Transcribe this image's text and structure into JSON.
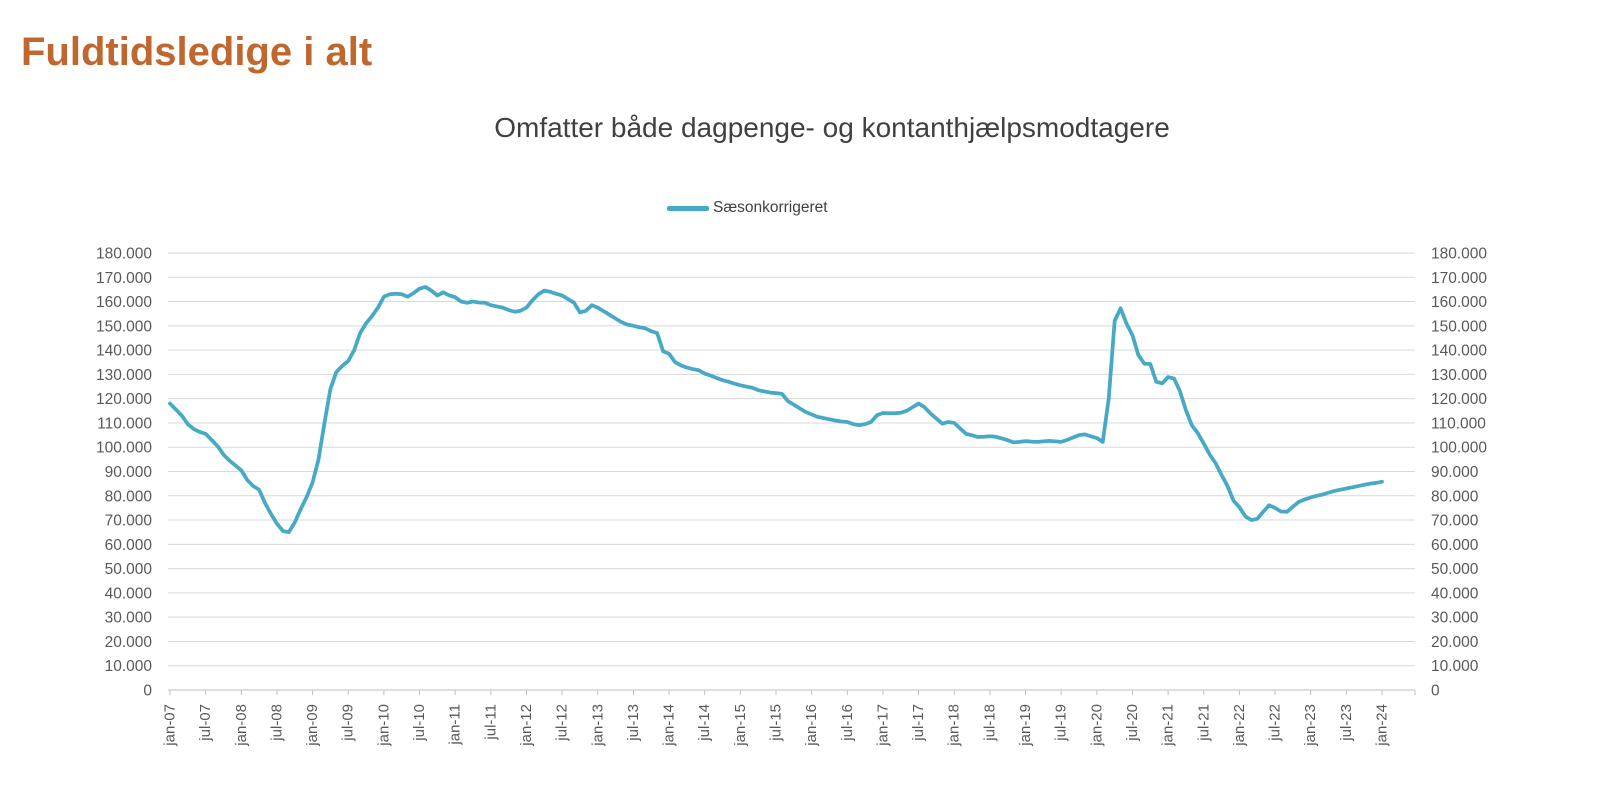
{
  "header": {
    "title": "Fuldtidsledige i alt",
    "title_color": "#c0662f"
  },
  "chart": {
    "title": "Omfatter både dagpenge- og kontanthjælpsmodtagere",
    "legend_label": "Sæsonkorrigeret",
    "line_color": "#47a9c5",
    "subtitle_color": "#404040",
    "axis_label_color": "#595959",
    "gridline_color": "#d9d9d9",
    "axis_line_color": "#bfbfbf"
  },
  "chart_data": {
    "type": "line",
    "title": "Omfatter både dagpenge- og kontanthjælpsmodtagere",
    "series": [
      {
        "name": "Sæsonkorrigeret",
        "color": "#47a9c5"
      }
    ],
    "unit": "fuldtidsledige personer (values stored in thousands)",
    "x_frequency": "monthly",
    "x_start": "jan-07",
    "x_end": "jan-24",
    "x_tick_labels": [
      "jan-07",
      "jul-07",
      "jan-08",
      "jul-08",
      "jan-09",
      "jul-09",
      "jan-10",
      "jul-10",
      "jan-11",
      "jul-11",
      "jan-12",
      "jul-12",
      "jan-13",
      "jul-13",
      "jan-14",
      "jul-14",
      "jan-15",
      "jul-15",
      "jan-16",
      "jul-16",
      "jan-17",
      "jul-17",
      "jan-18",
      "jul-18",
      "jan-19",
      "jul-19",
      "jan-20",
      "jul-20",
      "jan-21",
      "jul-21",
      "jan-22",
      "jul-22",
      "jan-23",
      "jul-23",
      "jan-24"
    ],
    "y_min": 0,
    "y_max": 180000,
    "y_tick_step": 10000,
    "y_axis_sides": [
      "left",
      "right"
    ],
    "y_label_format": "danish thousands separator (180.000)",
    "grid": "horizontal",
    "legend_position": "top-center",
    "values_thousands": [
      118,
      115.5,
      113,
      109.5,
      107.5,
      106.3,
      105.5,
      103,
      100.5,
      97,
      94.5,
      92.5,
      90.5,
      86.5,
      84,
      82.5,
      77,
      72.5,
      68.5,
      65.5,
      65,
      69,
      74.5,
      79.5,
      85.5,
      95,
      110,
      124,
      131,
      133.5,
      135.5,
      140,
      147,
      151,
      154,
      157.5,
      162,
      163,
      163.2,
      163,
      162,
      163.5,
      165.3,
      166,
      164.5,
      162.5,
      163.8,
      162.5,
      161.8,
      160,
      159.5,
      160,
      159.6,
      159.5,
      158.5,
      158,
      157.5,
      156.5,
      155.8,
      156.2,
      157.5,
      160.5,
      163,
      164.5,
      164,
      163.2,
      162.5,
      161,
      159.5,
      155.5,
      156.2,
      158.5,
      157.5,
      156,
      154.5,
      153,
      151.5,
      150.5,
      150,
      149.4,
      149,
      147.8,
      147,
      139.5,
      138.5,
      135.1,
      133.7,
      132.8,
      132.2,
      131.7,
      130.3,
      129.5,
      128.5,
      127.6,
      127,
      126.2,
      125.5,
      125,
      124.5,
      123.5,
      123,
      122.5,
      122.3,
      122,
      119,
      117.5,
      116,
      114.5,
      113.5,
      112.5,
      112,
      111.5,
      111,
      110.6,
      110.4,
      109.5,
      109.1,
      109.5,
      110.4,
      113.2,
      114.1,
      114,
      114,
      114.2,
      115,
      116.5,
      118,
      116.5,
      113.9,
      111.8,
      109.7,
      110.4,
      110,
      107.7,
      105.5,
      104.9,
      104.2,
      104.3,
      104.5,
      104.3,
      103.6,
      102.9,
      102,
      102.2,
      102.5,
      102.3,
      102.2,
      102.4,
      102.6,
      102.4,
      102.2,
      103,
      104,
      105,
      105.3,
      104.5,
      103.8,
      102.2,
      120,
      152,
      157.2,
      150.9,
      146.1,
      137.9,
      134.4,
      134.3,
      127,
      126.3,
      128.9,
      128.3,
      123,
      115.2,
      109,
      105.8,
      101.5,
      97,
      93.4,
      88.5,
      84,
      78,
      75.3,
      71.5,
      70,
      70.5,
      73.4,
      76.1,
      75,
      73.5,
      73.4,
      75.5,
      77.5,
      78.5,
      79.3,
      80,
      80.5,
      81.3,
      82,
      82.5,
      83,
      83.5,
      84,
      84.5,
      85,
      85.3,
      85.8
    ]
  }
}
